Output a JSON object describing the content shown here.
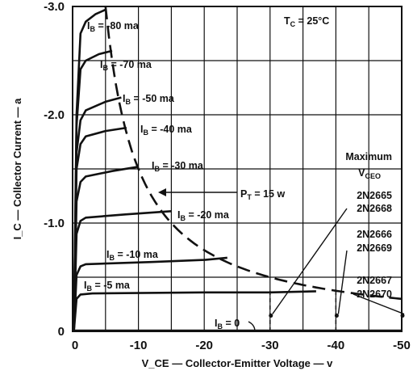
{
  "chart_data": {
    "type": "line",
    "title": "",
    "xlabel": "V_CE — Collector-Emitter Voltage — v",
    "ylabel": "I_C — Collector Current — a",
    "x_ticks": [
      "0",
      "-10",
      "-20",
      "-30",
      "-40",
      "-50"
    ],
    "y_ticks": [
      "0",
      "-1.0",
      "-2.0",
      "-3.0"
    ],
    "xlim": [
      0,
      -50
    ],
    "ylim": [
      0,
      -3.0
    ],
    "grid": true,
    "condition": {
      "prefix": "T",
      "sub": "C",
      "value": " = 25°C"
    },
    "series": [
      {
        "name": "I_B = -80 ma",
        "label": "= -80 ma",
        "points": [
          [
            -0.2,
            0
          ],
          [
            -0.6,
            -2.0
          ],
          [
            -1.2,
            -2.75
          ],
          [
            -2.0,
            -2.86
          ],
          [
            -3.5,
            -2.93
          ],
          [
            -5.0,
            -2.97
          ]
        ]
      },
      {
        "name": "I_B = -70 ma",
        "label": "= -70 ma",
        "points": [
          [
            -0.2,
            0
          ],
          [
            -0.6,
            -1.9
          ],
          [
            -1.2,
            -2.42
          ],
          [
            -2.0,
            -2.5
          ],
          [
            -4.0,
            -2.56
          ],
          [
            -6.0,
            -2.59
          ]
        ]
      },
      {
        "name": "I_B = -50 ma",
        "label": "= -50 ma",
        "points": [
          [
            -0.2,
            0
          ],
          [
            -0.6,
            -1.65
          ],
          [
            -1.2,
            -1.95
          ],
          [
            -2.0,
            -2.04
          ],
          [
            -5.0,
            -2.12
          ],
          [
            -7.4,
            -2.16
          ]
        ]
      },
      {
        "name": "I_B = -40 ma",
        "label": "= -40 ma",
        "points": [
          [
            -0.2,
            0
          ],
          [
            -0.6,
            -1.5
          ],
          [
            -1.2,
            -1.73
          ],
          [
            -2.0,
            -1.8
          ],
          [
            -5.0,
            -1.85
          ],
          [
            -8.2,
            -1.88
          ]
        ]
      },
      {
        "name": "I_B = -30 ma",
        "label": "= -30 ma",
        "points": [
          [
            -0.2,
            0
          ],
          [
            -0.6,
            -1.2
          ],
          [
            -1.2,
            -1.38
          ],
          [
            -2.0,
            -1.43
          ],
          [
            -6.0,
            -1.48
          ],
          [
            -10.0,
            -1.52
          ]
        ]
      },
      {
        "name": "I_B = -20 ma",
        "label": "= -20 ma",
        "points": [
          [
            -0.2,
            0
          ],
          [
            -0.6,
            -0.9
          ],
          [
            -1.2,
            -1.02
          ],
          [
            -2.0,
            -1.05
          ],
          [
            -8.0,
            -1.08
          ],
          [
            -15.0,
            -1.11
          ]
        ]
      },
      {
        "name": "I_B = -10 ma",
        "label": "= -10 ma",
        "points": [
          [
            -0.2,
            0
          ],
          [
            -0.6,
            -0.52
          ],
          [
            -1.2,
            -0.6
          ],
          [
            -2.0,
            -0.62
          ],
          [
            -12.0,
            -0.64
          ],
          [
            -20.0,
            -0.66
          ],
          [
            -23.5,
            -0.68
          ]
        ]
      },
      {
        "name": "I_B = -5 ma",
        "label": "= -5 ma",
        "points": [
          [
            -0.2,
            0
          ],
          [
            -0.6,
            -0.3
          ],
          [
            -1.2,
            -0.34
          ],
          [
            -3.0,
            -0.35
          ],
          [
            -20.0,
            -0.36
          ],
          [
            -30.0,
            -0.36
          ],
          [
            -37.0,
            -0.37
          ]
        ]
      }
    ],
    "ib_zero_label": "= 0",
    "power_curve": {
      "label_prefix": "P",
      "label_sub": "T",
      "label_value": " = 15 w",
      "watts": 15
    },
    "max_vceo": {
      "heading": "Maximum",
      "sub_prefix": "V",
      "sub_sub": "CEO",
      "devices": [
        {
          "names": [
            "2N2665",
            "2N2668"
          ],
          "value": -30
        },
        {
          "names": [
            "2N2666",
            "2N2669"
          ],
          "value": -40
        },
        {
          "names": [
            "2N2667",
            "2N2670"
          ],
          "value": -50
        }
      ]
    }
  }
}
